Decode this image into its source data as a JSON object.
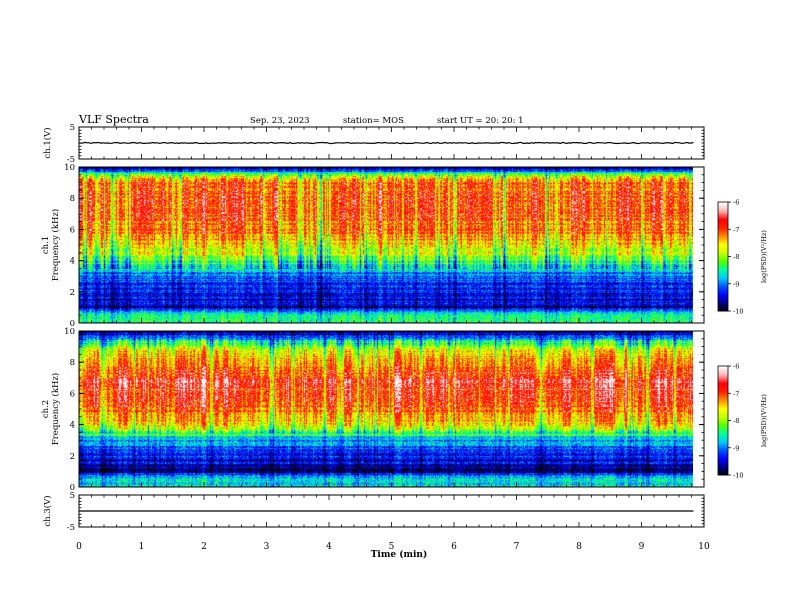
{
  "header": {
    "title": "VLF Spectra",
    "date": "Sep. 23, 2023",
    "station": "station= MOS",
    "start": "start  UT =   20: 20: 1"
  },
  "colors": {
    "spectrogram_scale": [
      "#000000",
      "#000080",
      "#0000ff",
      "#0050ff",
      "#00c8ff",
      "#00ffa0",
      "#50ff00",
      "#c8ff00",
      "#ffff00",
      "#ff8c00",
      "#ff2000",
      "#ff0000",
      "#ffb0b0",
      "#ffffff"
    ],
    "axis": "#000000",
    "waveform": "#000000"
  },
  "chart_data": [
    {
      "type": "line",
      "panel": "ch1-waveform",
      "ylabel": "ch.1(V)",
      "ylim": [
        -5,
        5
      ],
      "yticks": [
        "5",
        "-5"
      ],
      "xlim": [
        0,
        10
      ],
      "series": [
        {
          "x": [
            0,
            9.83
          ],
          "values": [
            0,
            0
          ]
        }
      ]
    },
    {
      "type": "heatmap",
      "panel": "ch1-spectrogram",
      "ylabel": [
        "ch.1",
        "Frequency (kHz)"
      ],
      "ylim": [
        0,
        10
      ],
      "yticks": [
        "0",
        "2",
        "4",
        "6",
        "8",
        "10"
      ],
      "xlim": [
        0,
        10
      ],
      "data_xmax": 9.83,
      "colorbar": {
        "label": "log(PSD)(V²/Hz)",
        "range": [
          -10,
          -6
        ],
        "ticks": [
          "-6",
          "-7",
          "-8",
          "-9",
          "-10"
        ]
      },
      "frequency_profile_kHz": [
        0,
        0.5,
        1,
        2,
        3,
        3.5,
        4,
        5,
        6,
        7,
        8,
        9,
        9.5,
        10
      ],
      "log_psd_profile": [
        -8.6,
        -8.3,
        -9.5,
        -9.3,
        -9.0,
        -8.6,
        -8.1,
        -7.4,
        -7.0,
        -6.9,
        -6.8,
        -6.9,
        -7.8,
        -9.8
      ]
    },
    {
      "type": "heatmap",
      "panel": "ch2-spectrogram",
      "ylabel": [
        "ch.2",
        "Frequency (kHz)"
      ],
      "ylim": [
        0,
        10
      ],
      "yticks": [
        "0",
        "2",
        "4",
        "6",
        "8",
        "10"
      ],
      "xlim": [
        0,
        10
      ],
      "data_xmax": 9.83,
      "colorbar": {
        "label": "log(PSD)(V²/Hz)",
        "range": [
          -10,
          -6
        ],
        "ticks": [
          "-6",
          "-7",
          "-8",
          "-9",
          "-10"
        ]
      },
      "frequency_profile_kHz": [
        0,
        0.5,
        1,
        2,
        3,
        3.5,
        4,
        5,
        6,
        7,
        8,
        9,
        9.5,
        10
      ],
      "log_psd_profile": [
        -8.5,
        -8.6,
        -9.6,
        -9.3,
        -8.8,
        -8.2,
        -7.5,
        -6.9,
        -6.6,
        -6.6,
        -7.0,
        -7.8,
        -8.6,
        -9.8
      ]
    },
    {
      "type": "line",
      "panel": "ch3-waveform",
      "ylabel": "ch.3(V)",
      "ylim": [
        -5,
        5
      ],
      "yticks": [
        "5",
        "-5"
      ],
      "xlim": [
        0,
        10
      ],
      "series": [
        {
          "x": [
            0,
            9.83
          ],
          "values": [
            0,
            0
          ]
        }
      ]
    }
  ],
  "xaxis": {
    "label": "Time (min)",
    "ticks": [
      "0",
      "1",
      "2",
      "3",
      "4",
      "5",
      "6",
      "7",
      "8",
      "9",
      "10"
    ]
  }
}
